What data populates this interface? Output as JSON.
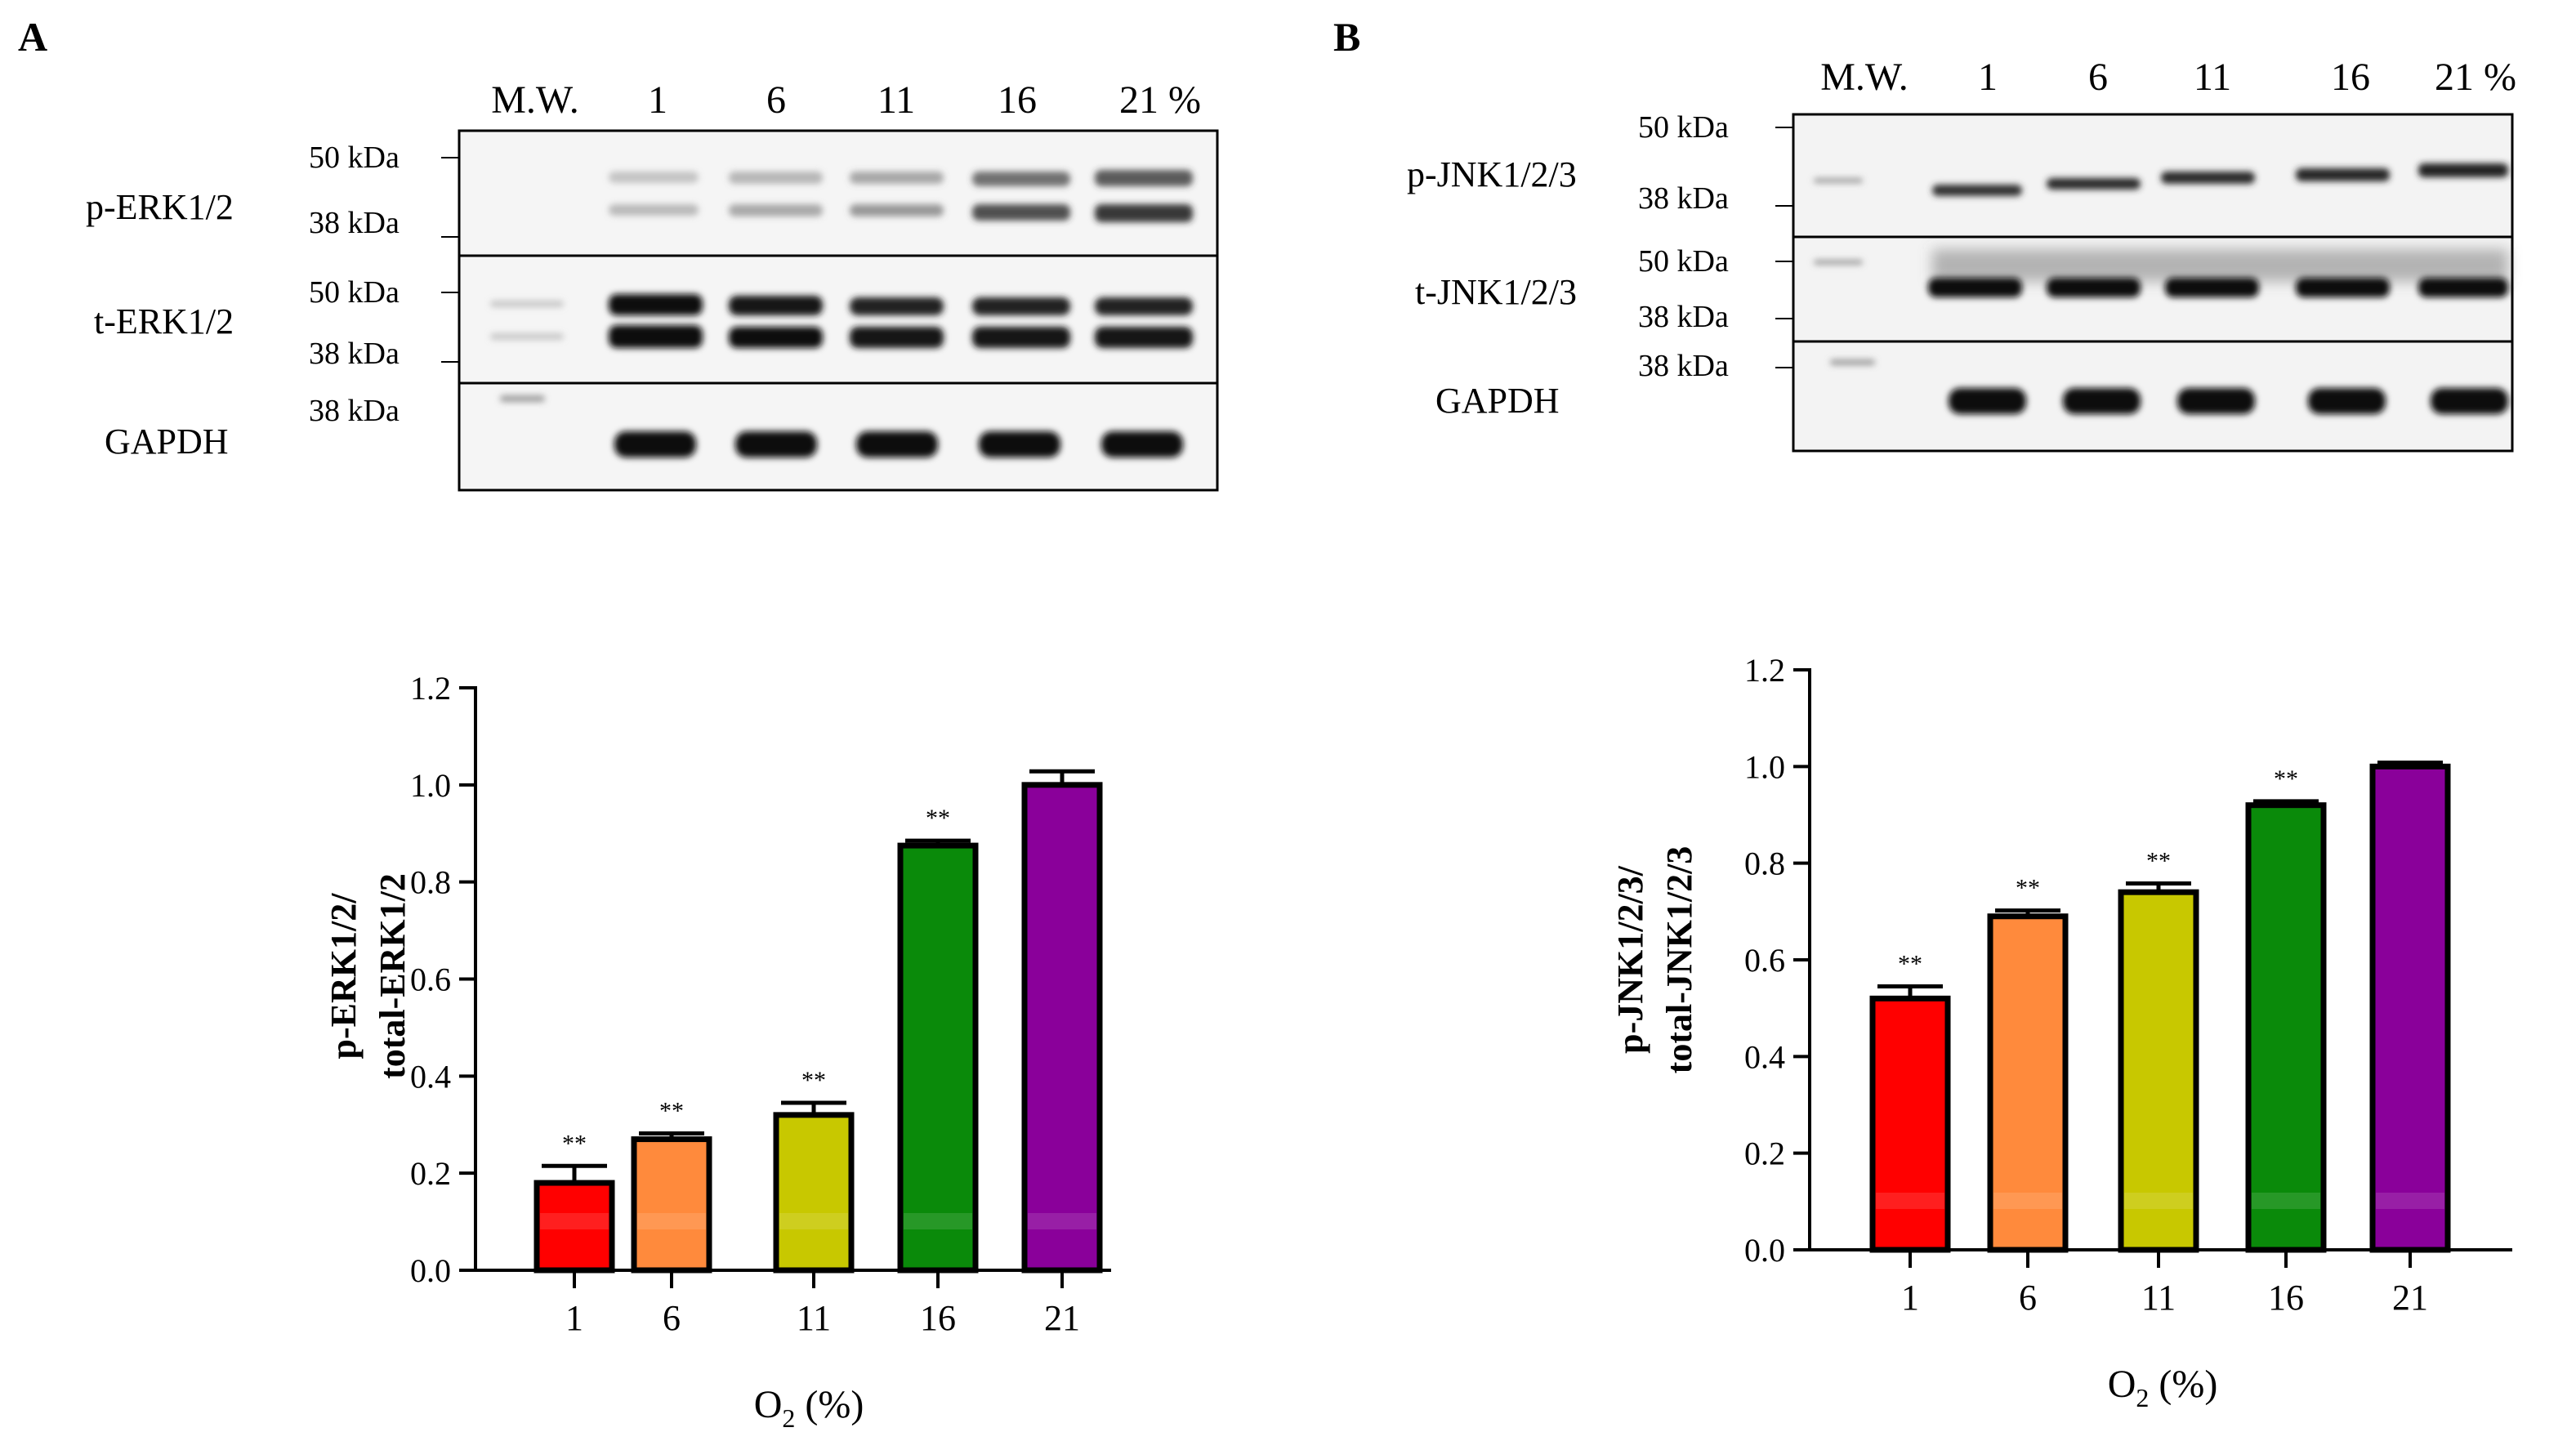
{
  "panels": {
    "A": {
      "label": "A",
      "lanes": [
        "M.W.",
        "1",
        "6",
        "11",
        "16",
        "21 %"
      ],
      "blots": [
        {
          "protein": "p-ERK1/2",
          "markers": [
            "50 kDa",
            "38 kDa"
          ]
        },
        {
          "protein": "t-ERK1/2",
          "markers": [
            "50 kDa",
            "38 kDa"
          ]
        },
        {
          "protein": "GAPDH",
          "markers": [
            "38 kDa"
          ]
        }
      ]
    },
    "B": {
      "label": "B",
      "lanes": [
        "M.W.",
        "1",
        "6",
        "11",
        "16",
        "21 %"
      ],
      "blots": [
        {
          "protein": "p-JNK1/2/3",
          "markers": [
            "50 kDa",
            "38 kDa"
          ]
        },
        {
          "protein": "t-JNK1/2/3",
          "markers": [
            "50 kDa",
            "38 kDa"
          ]
        },
        {
          "protein": "GAPDH",
          "markers": [
            "38 kDa"
          ]
        }
      ]
    }
  },
  "chart_data": [
    {
      "type": "bar",
      "panel": "A",
      "categories": [
        "1",
        "6",
        "11",
        "16",
        "21"
      ],
      "values": [
        0.18,
        0.27,
        0.32,
        0.875,
        1.0
      ],
      "errors": [
        0.035,
        0.012,
        0.025,
        0.01,
        0.028
      ],
      "significance": [
        "**",
        "**",
        "**",
        "**",
        ""
      ],
      "colors": [
        "#ff0000",
        "#ff8a3c",
        "#c8c800",
        "#0a8a0a",
        "#8a009a"
      ],
      "ylabel_line1": "p-ERK1/2/",
      "ylabel_line2": "total-ERK1/2",
      "xlabel_main": "O",
      "xlabel_sub": "2",
      "xlabel_rest": " (%)",
      "ylim": [
        0,
        1.2
      ],
      "yticks": [
        "0.0",
        "0.2",
        "0.4",
        "0.6",
        "0.8",
        "1.0",
        "1.2"
      ]
    },
    {
      "type": "bar",
      "panel": "B",
      "categories": [
        "1",
        "6",
        "11",
        "16",
        "21"
      ],
      "values": [
        0.52,
        0.69,
        0.74,
        0.92,
        1.0
      ],
      "errors": [
        0.025,
        0.012,
        0.018,
        0.008,
        0.008
      ],
      "significance": [
        "**",
        "**",
        "**",
        "**",
        ""
      ],
      "colors": [
        "#ff0000",
        "#ff8a3c",
        "#c8c800",
        "#0a8a0a",
        "#8a009a"
      ],
      "ylabel_line1": "p-JNK1/2/3/",
      "ylabel_line2": "total-JNK1/2/3",
      "xlabel_main": "O",
      "xlabel_sub": "2",
      "xlabel_rest": " (%)",
      "ylim": [
        0,
        1.2
      ],
      "yticks": [
        "0.0",
        "0.2",
        "0.4",
        "0.6",
        "0.8",
        "1.0",
        "1.2"
      ]
    }
  ]
}
